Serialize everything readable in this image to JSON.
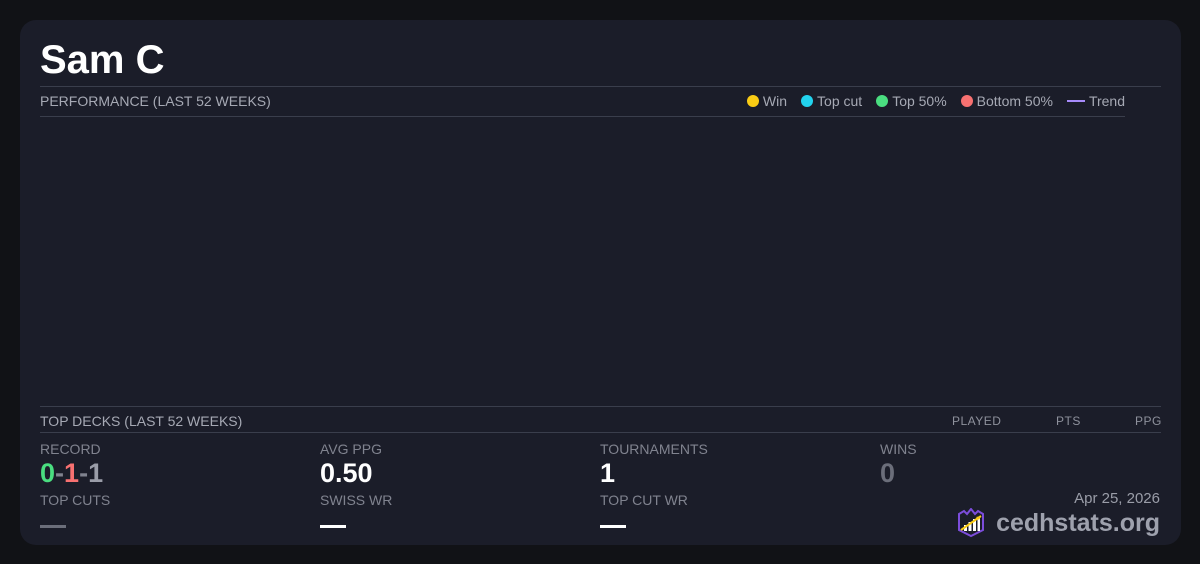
{
  "player": {
    "name": "Sam C"
  },
  "performance": {
    "title": "PERFORMANCE (LAST 52 WEEKS)",
    "legend": [
      {
        "label": "Win",
        "color": "#facc15"
      },
      {
        "label": "Top cut",
        "color": "#22d3ee"
      },
      {
        "label": "Top 50%",
        "color": "#4ade80"
      },
      {
        "label": "Bottom 50%",
        "color": "#f87171"
      },
      {
        "label": "Trend",
        "color": "#a78bfa",
        "type": "line"
      }
    ]
  },
  "top_decks": {
    "title": "TOP DECKS (LAST 52 WEEKS)",
    "columns": [
      "PLAYED",
      "PTS",
      "PPG"
    ]
  },
  "stats": {
    "record_label": "RECORD",
    "record_w": "0",
    "record_l": "1",
    "record_d": "1",
    "sep": "-",
    "avg_ppg_label": "AVG PPG",
    "avg_ppg": "0.50",
    "tournaments_label": "TOURNAMENTS",
    "tournaments": "1",
    "wins_label": "WINS",
    "wins": "0",
    "top_cuts_label": "TOP CUTS",
    "swiss_wr_label": "SWISS WR",
    "top_cut_wr_label": "TOP CUT WR"
  },
  "footer": {
    "date": "Apr 25, 2026",
    "brand": "cedhstats.org",
    "brand_icon": "shield-chart-icon"
  }
}
